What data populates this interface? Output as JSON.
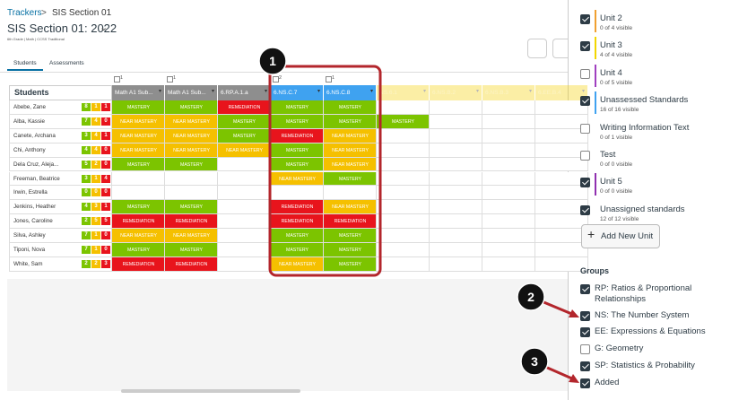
{
  "breadcrumb": [
    "Trackers",
    "SIS Section 01"
  ],
  "title": "SIS Section 01: 2022",
  "subtitle": "6th Grade | Math | CCSS Traditional",
  "tabs": [
    "Students",
    "Assessments"
  ],
  "grid": {
    "header": "Students",
    "status_colors": {
      "MASTERY": "#7cc400",
      "NEAR MASTERY": "#f5c000",
      "REMEDIATION": "#e8141c"
    },
    "count_colors": [
      "#7cc400",
      "#f5c000",
      "#e8141c"
    ],
    "columns": [
      {
        "label": "Math A1 Sub...",
        "color": "#8e8e8e",
        "badge": "1",
        "dimmed": false
      },
      {
        "label": "Math A1 Sub...",
        "color": "#8e8e8e",
        "badge": "1",
        "dimmed": false
      },
      {
        "label": "6.RP.A.1.a",
        "color": "#8e8e8e",
        "badge": null,
        "dimmed": false
      },
      {
        "label": "6.NS.C.7",
        "color": "#3fa2f0",
        "badge": "2",
        "dimmed": false
      },
      {
        "label": "6.NS.C.8",
        "color": "#3fa2f0",
        "badge": "1",
        "dimmed": false
      },
      {
        "label": "NS.6.1",
        "color": "#f5d000",
        "badge": null,
        "dimmed": true
      },
      {
        "label": "6.NS.B.2",
        "color": "#f5d000",
        "badge": null,
        "dimmed": true
      },
      {
        "label": "6.NS.B.3",
        "color": "#f5d000",
        "badge": null,
        "dimmed": true
      },
      {
        "label": "6.EE.B.4",
        "color": "#f5d000",
        "badge": null,
        "dimmed": true
      }
    ],
    "rows": [
      {
        "name": "Abebe, Zane",
        "counts": [
          8,
          1,
          1
        ],
        "cells": [
          "MASTERY",
          "MASTERY",
          "REMEDIATION",
          "MASTERY",
          "MASTERY",
          null,
          null,
          null,
          null
        ]
      },
      {
        "name": "Alba, Kassie",
        "counts": [
          7,
          4,
          0
        ],
        "cells": [
          "NEAR MASTERY",
          "NEAR MASTERY",
          "MASTERY",
          "MASTERY",
          "MASTERY",
          "MASTERY",
          null,
          null,
          null
        ]
      },
      {
        "name": "Canete, Archana",
        "counts": [
          3,
          4,
          1
        ],
        "cells": [
          "NEAR MASTERY",
          "NEAR MASTERY",
          "MASTERY",
          "REMEDIATION",
          "NEAR MASTERY",
          null,
          null,
          null,
          null
        ]
      },
      {
        "name": "Chi, Anthony",
        "counts": [
          4,
          4,
          0
        ],
        "cells": [
          "NEAR MASTERY",
          "NEAR MASTERY",
          "NEAR MASTERY",
          "MASTERY",
          "NEAR MASTERY",
          null,
          null,
          null,
          null
        ]
      },
      {
        "name": "Dela Cruz, Aleja...",
        "counts": [
          5,
          2,
          0
        ],
        "cells": [
          "MASTERY",
          "MASTERY",
          null,
          "MASTERY",
          "NEAR MASTERY",
          null,
          null,
          null,
          null
        ]
      },
      {
        "name": "Freeman, Beatrice",
        "counts": [
          3,
          1,
          4
        ],
        "cells": [
          null,
          null,
          null,
          "NEAR MASTERY",
          "MASTERY",
          null,
          null,
          null,
          null
        ]
      },
      {
        "name": "Irwin, Estrella",
        "counts": [
          0,
          0,
          0
        ],
        "cells": [
          null,
          null,
          null,
          null,
          null,
          null,
          null,
          null,
          null
        ]
      },
      {
        "name": "Jenkins, Heather",
        "counts": [
          4,
          3,
          1
        ],
        "cells": [
          "MASTERY",
          "MASTERY",
          null,
          "REMEDIATION",
          "NEAR MASTERY",
          null,
          null,
          null,
          null
        ]
      },
      {
        "name": "Jones, Caroline",
        "counts": [
          2,
          5,
          5
        ],
        "cells": [
          "REMEDIATION",
          "REMEDIATION",
          null,
          "REMEDIATION",
          "REMEDIATION",
          null,
          null,
          null,
          null
        ]
      },
      {
        "name": "Silva, Ashley",
        "counts": [
          7,
          1,
          0
        ],
        "cells": [
          "NEAR MASTERY",
          "NEAR MASTERY",
          null,
          "MASTERY",
          "MASTERY",
          null,
          null,
          null,
          null
        ]
      },
      {
        "name": "Tiponi, Nova",
        "counts": [
          7,
          1,
          0
        ],
        "cells": [
          "MASTERY",
          "MASTERY",
          null,
          "MASTERY",
          "MASTERY",
          null,
          null,
          null,
          null
        ]
      },
      {
        "name": "White, Sam",
        "counts": [
          2,
          2,
          3
        ],
        "cells": [
          "REMEDIATION",
          "REMEDIATION",
          null,
          "NEAR MASTERY",
          "MASTERY",
          null,
          null,
          null,
          null
        ]
      }
    ]
  },
  "units": [
    {
      "label": "Unit 2",
      "visible": "0 of 4 visible",
      "checked": true,
      "color": "#f0a030"
    },
    {
      "label": "Unit 3",
      "visible": "4 of 4 visible",
      "checked": true,
      "color": "#f2d600"
    },
    {
      "label": "Unit 4",
      "visible": "0 of 5 visible",
      "checked": false,
      "color": "#a040c0"
    },
    {
      "label": "Unassessed Standards",
      "visible": "16 of 16 visible",
      "checked": true,
      "color": "#3fa2f0"
    },
    {
      "label": "Writing Information Text",
      "visible": "0 of 1 visible",
      "checked": false,
      "color": null
    },
    {
      "label": "Test",
      "visible": "0 of 0 visible",
      "checked": false,
      "color": null
    },
    {
      "label": "Unit 5",
      "visible": "0 of 0 visible",
      "checked": true,
      "color": "#9030b0"
    },
    {
      "label": "Unassigned standards",
      "visible": "12 of 12 visible",
      "checked": true,
      "color": null
    }
  ],
  "add_unit_button": "Add New Unit",
  "groups": {
    "heading": "Groups",
    "items": [
      {
        "label": "RP: Ratios & Proportional Relationships",
        "checked": true
      },
      {
        "label": "NS: The Number System",
        "checked": true
      },
      {
        "label": "EE: Expressions & Equations",
        "checked": true
      },
      {
        "label": "G: Geometry",
        "checked": false
      },
      {
        "label": "SP: Statistics & Probability",
        "checked": true
      },
      {
        "label": "Added",
        "checked": true
      }
    ]
  },
  "callouts": [
    "1",
    "2",
    "3"
  ]
}
